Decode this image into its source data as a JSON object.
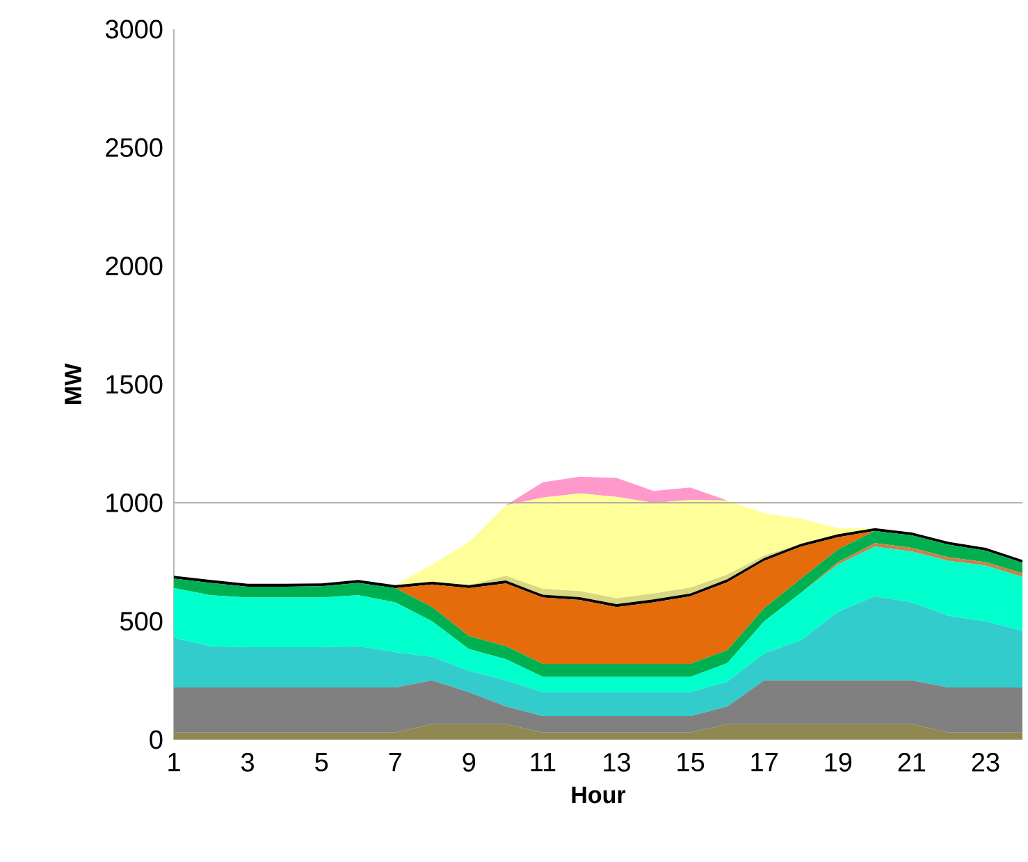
{
  "chart_data": {
    "type": "area",
    "stacked": true,
    "xlabel": "Hour",
    "ylabel": "MW",
    "x": [
      1,
      2,
      3,
      4,
      5,
      6,
      7,
      8,
      9,
      10,
      11,
      12,
      13,
      14,
      15,
      16,
      17,
      18,
      19,
      20,
      21,
      22,
      23,
      24
    ],
    "xlim": [
      1,
      24
    ],
    "xticks": [
      1,
      3,
      5,
      7,
      9,
      11,
      13,
      15,
      17,
      19,
      21,
      23
    ],
    "ylim": [
      0,
      3000
    ],
    "yticks": [
      0,
      500,
      1000,
      1500,
      2000,
      2500,
      3000
    ],
    "ref_lines": [
      {
        "axis": "y",
        "value": 1000,
        "color": "#a6a6a6"
      }
    ],
    "series": [
      {
        "color": "#8f8850",
        "values": [
          30,
          30,
          30,
          30,
          30,
          30,
          30,
          65,
          65,
          65,
          30,
          30,
          30,
          30,
          30,
          65,
          65,
          65,
          65,
          65,
          65,
          30,
          30,
          30
        ]
      },
      {
        "color": "#808080",
        "values": [
          190,
          190,
          190,
          190,
          190,
          190,
          190,
          185,
          135,
          75,
          70,
          70,
          70,
          70,
          70,
          75,
          185,
          185,
          185,
          185,
          185,
          190,
          190,
          190
        ]
      },
      {
        "color": "#33cccc",
        "values": [
          210,
          175,
          170,
          170,
          170,
          175,
          150,
          100,
          90,
          110,
          100,
          100,
          100,
          100,
          100,
          105,
          115,
          170,
          290,
          355,
          330,
          303,
          280,
          240
        ]
      },
      {
        "color": "#00ffcc",
        "values": [
          210,
          215,
          210,
          210,
          210,
          215,
          210,
          150,
          92,
          90,
          65,
          65,
          65,
          65,
          65,
          78,
          135,
          200,
          200,
          210,
          215,
          232,
          235,
          227
        ]
      },
      {
        "color": "#c8824a",
        "values": [
          0,
          0,
          0,
          0,
          0,
          0,
          0,
          0,
          0,
          0,
          0,
          0,
          0,
          0,
          0,
          0,
          0,
          0,
          10,
          15,
          15,
          15,
          15,
          15
        ]
      },
      {
        "color": "#00b050",
        "values": [
          40,
          52,
          46,
          46,
          48,
          52,
          60,
          60,
          55,
          55,
          55,
          55,
          55,
          55,
          55,
          55,
          55,
          60,
          53,
          51,
          53,
          53,
          48,
          45
        ]
      },
      {
        "color": "#e46c0a",
        "values": [
          0,
          0,
          0,
          0,
          0,
          0,
          0,
          95,
          203,
          265,
          280,
          270,
          240,
          260,
          285,
          287,
          200,
          135,
          52,
          0,
          0,
          0,
          0,
          0
        ]
      },
      {
        "color": "#000000",
        "values": [
          12,
          12,
          12,
          12,
          12,
          12,
          12,
          12,
          12,
          12,
          12,
          12,
          12,
          12,
          12,
          12,
          12,
          12,
          12,
          12,
          12,
          12,
          12,
          12
        ]
      },
      {
        "color": "#d8d880",
        "values": [
          0,
          0,
          0,
          0,
          0,
          0,
          0,
          0,
          0,
          20,
          25,
          25,
          25,
          25,
          25,
          20,
          10,
          0,
          0,
          0,
          0,
          0,
          0,
          0
        ]
      },
      {
        "color": "#ffff99",
        "values": [
          0,
          0,
          0,
          0,
          0,
          0,
          0,
          73,
          182,
          298,
          385,
          413,
          428,
          383,
          370,
          313,
          180,
          106,
          26,
          0,
          0,
          0,
          0,
          0
        ]
      },
      {
        "color": "#ff99cc",
        "values": [
          0,
          0,
          0,
          0,
          0,
          0,
          0,
          0,
          0,
          0,
          65,
          70,
          80,
          50,
          53,
          0,
          0,
          0,
          0,
          0,
          0,
          0,
          0,
          0
        ]
      }
    ]
  }
}
